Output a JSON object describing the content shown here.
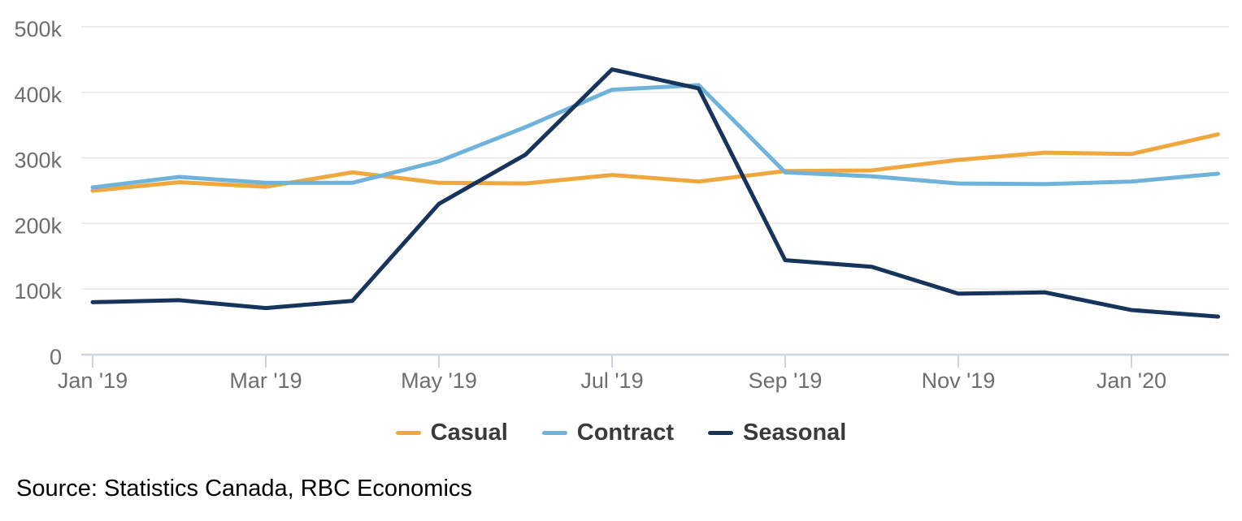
{
  "chart_data": {
    "type": "line",
    "title": "",
    "xlabel": "",
    "ylabel": "",
    "ylim": [
      0,
      500000
    ],
    "grid": true,
    "legend_position": "bottom-center",
    "categories": [
      "Jan '19",
      "Feb '19",
      "Mar '19",
      "Apr '19",
      "May '19",
      "Jun '19",
      "Jul '19",
      "Aug '19",
      "Sep '19",
      "Oct '19",
      "Nov '19",
      "Dec '19",
      "Jan '20",
      "Feb '20"
    ],
    "x_ticks": [
      {
        "index": 0,
        "label": "Jan '19"
      },
      {
        "index": 2,
        "label": "Mar '19"
      },
      {
        "index": 4,
        "label": "May '19"
      },
      {
        "index": 6,
        "label": "Jul '19"
      },
      {
        "index": 8,
        "label": "Sep '19"
      },
      {
        "index": 10,
        "label": "Nov '19"
      },
      {
        "index": 12,
        "label": "Jan '20"
      }
    ],
    "y_ticks": [
      {
        "value": 0,
        "label": "0"
      },
      {
        "value": 100000,
        "label": "100k"
      },
      {
        "value": 200000,
        "label": "200k"
      },
      {
        "value": 300000,
        "label": "300k"
      },
      {
        "value": 400000,
        "label": "400k"
      },
      {
        "value": 500000,
        "label": "500k"
      }
    ],
    "series": [
      {
        "name": "Casual",
        "color": "#EFA73E",
        "values": [
          250000,
          263000,
          256000,
          278000,
          262000,
          261000,
          274000,
          264000,
          280000,
          281000,
          297000,
          308000,
          306000,
          336000
        ]
      },
      {
        "name": "Contract",
        "color": "#6FB3DA",
        "values": [
          255000,
          271000,
          262000,
          262000,
          295000,
          347000,
          404000,
          411000,
          278000,
          272000,
          261000,
          260000,
          264000,
          276000
        ]
      },
      {
        "name": "Seasonal",
        "color": "#17345C",
        "values": [
          80000,
          83000,
          71000,
          82000,
          230000,
          305000,
          435000,
          406000,
          144000,
          134000,
          93000,
          95000,
          68000,
          58000
        ]
      }
    ]
  },
  "colors": {
    "background": "#FFFFFF",
    "gridline": "#E6E6E6",
    "axis_line": "#CBD5E1",
    "axis_label": "#6E6E6E",
    "legend_text": "#3A3A3A",
    "source_text": "#000000"
  },
  "source_text": "Source: Statistics Canada, RBC Economics"
}
